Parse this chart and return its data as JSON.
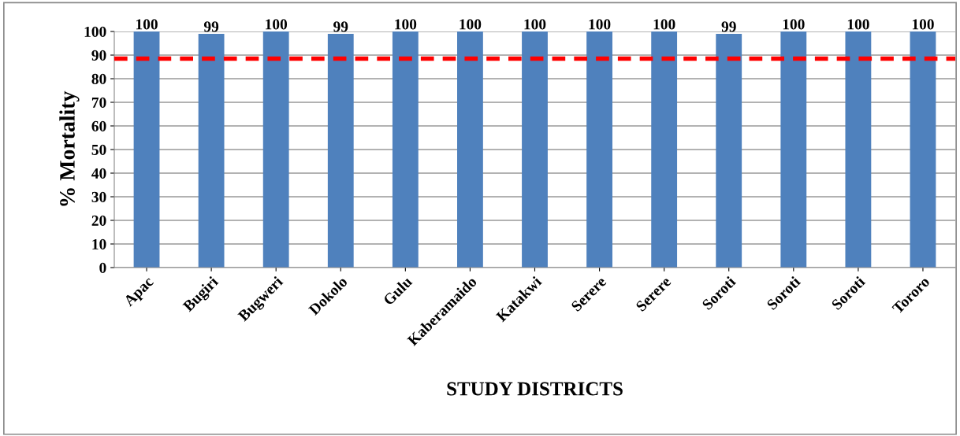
{
  "chart_data": {
    "type": "bar",
    "xlabel": "STUDY DISTRICTS",
    "ylabel": "% Mortality",
    "categories": [
      "Apac",
      "Bugiri",
      "Bugweri",
      "Dokolo",
      "Gulu",
      "Kaberamaido",
      "Katakwi",
      "Serere",
      "Serere",
      "Soroti",
      "Soroti",
      "Soroti",
      "Tororo"
    ],
    "values": [
      100,
      99,
      100,
      99,
      100,
      100,
      100,
      100,
      100,
      99,
      100,
      100,
      100
    ],
    "color": "#4f81bd",
    "data_labels": true,
    "ylim": [
      0,
      100
    ],
    "yticks": [
      0,
      10,
      20,
      30,
      40,
      50,
      60,
      70,
      80,
      90,
      100
    ],
    "grid": "y",
    "ref_lines": [
      {
        "axis": "y",
        "value": 88.5,
        "color": "#ff0000",
        "line_style": "dashed"
      }
    ]
  }
}
